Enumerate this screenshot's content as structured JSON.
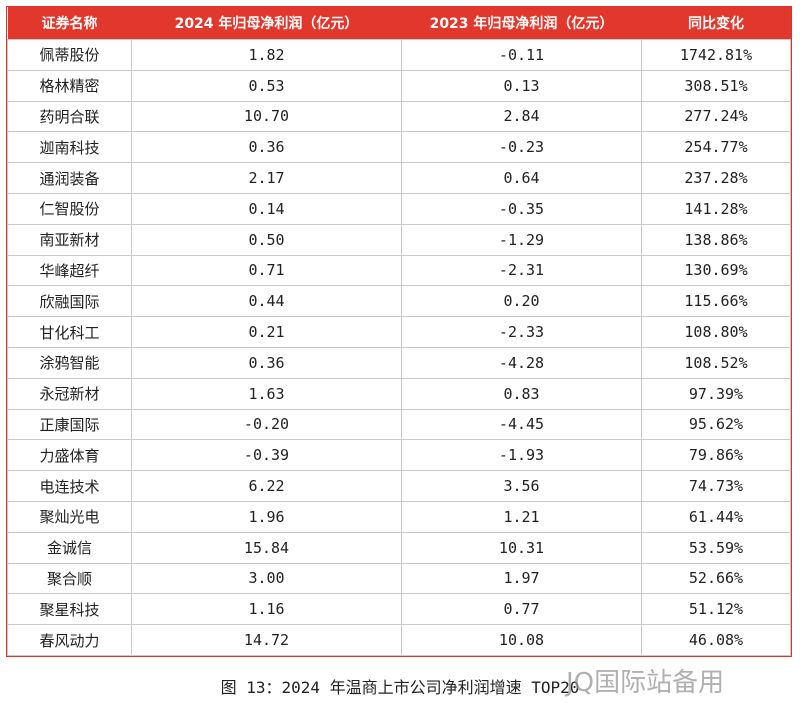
{
  "table": {
    "columns": [
      "证券名称",
      "2024 年归母净利润（亿元）",
      "2023 年归母净利润（亿元）",
      "同比变化"
    ],
    "rows": [
      [
        "佩蒂股份",
        "1.82",
        "-0.11",
        "1742.81%"
      ],
      [
        "格林精密",
        "0.53",
        "0.13",
        "308.51%"
      ],
      [
        "药明合联",
        "10.70",
        "2.84",
        "277.24%"
      ],
      [
        "迦南科技",
        "0.36",
        "-0.23",
        "254.77%"
      ],
      [
        "通润装备",
        "2.17",
        "0.64",
        "237.28%"
      ],
      [
        "仁智股份",
        "0.14",
        "-0.35",
        "141.28%"
      ],
      [
        "南亚新材",
        "0.50",
        "-1.29",
        "138.86%"
      ],
      [
        "华峰超纤",
        "0.71",
        "-2.31",
        "130.69%"
      ],
      [
        "欣融国际",
        "0.44",
        "0.20",
        "115.66%"
      ],
      [
        "甘化科工",
        "0.21",
        "-2.33",
        "108.80%"
      ],
      [
        "涂鸦智能",
        "0.36",
        "-4.28",
        "108.52%"
      ],
      [
        "永冠新材",
        "1.63",
        "0.83",
        "97.39%"
      ],
      [
        "正康国际",
        "-0.20",
        "-4.45",
        "95.62%"
      ],
      [
        "力盛体育",
        "-0.39",
        "-1.93",
        "79.86%"
      ],
      [
        "电连技术",
        "6.22",
        "3.56",
        "74.73%"
      ],
      [
        "聚灿光电",
        "1.96",
        "1.21",
        "61.44%"
      ],
      [
        "金诚信",
        "15.84",
        "10.31",
        "53.59%"
      ],
      [
        "聚合顺",
        "3.00",
        "1.97",
        "52.66%"
      ],
      [
        "聚星科技",
        "1.16",
        "0.77",
        "51.12%"
      ],
      [
        "春风动力",
        "14.72",
        "10.08",
        "46.08%"
      ]
    ]
  },
  "caption": "图 13：2024 年温商上市公司净利润增速 TOP20",
  "watermark": "JQ国际站备用"
}
